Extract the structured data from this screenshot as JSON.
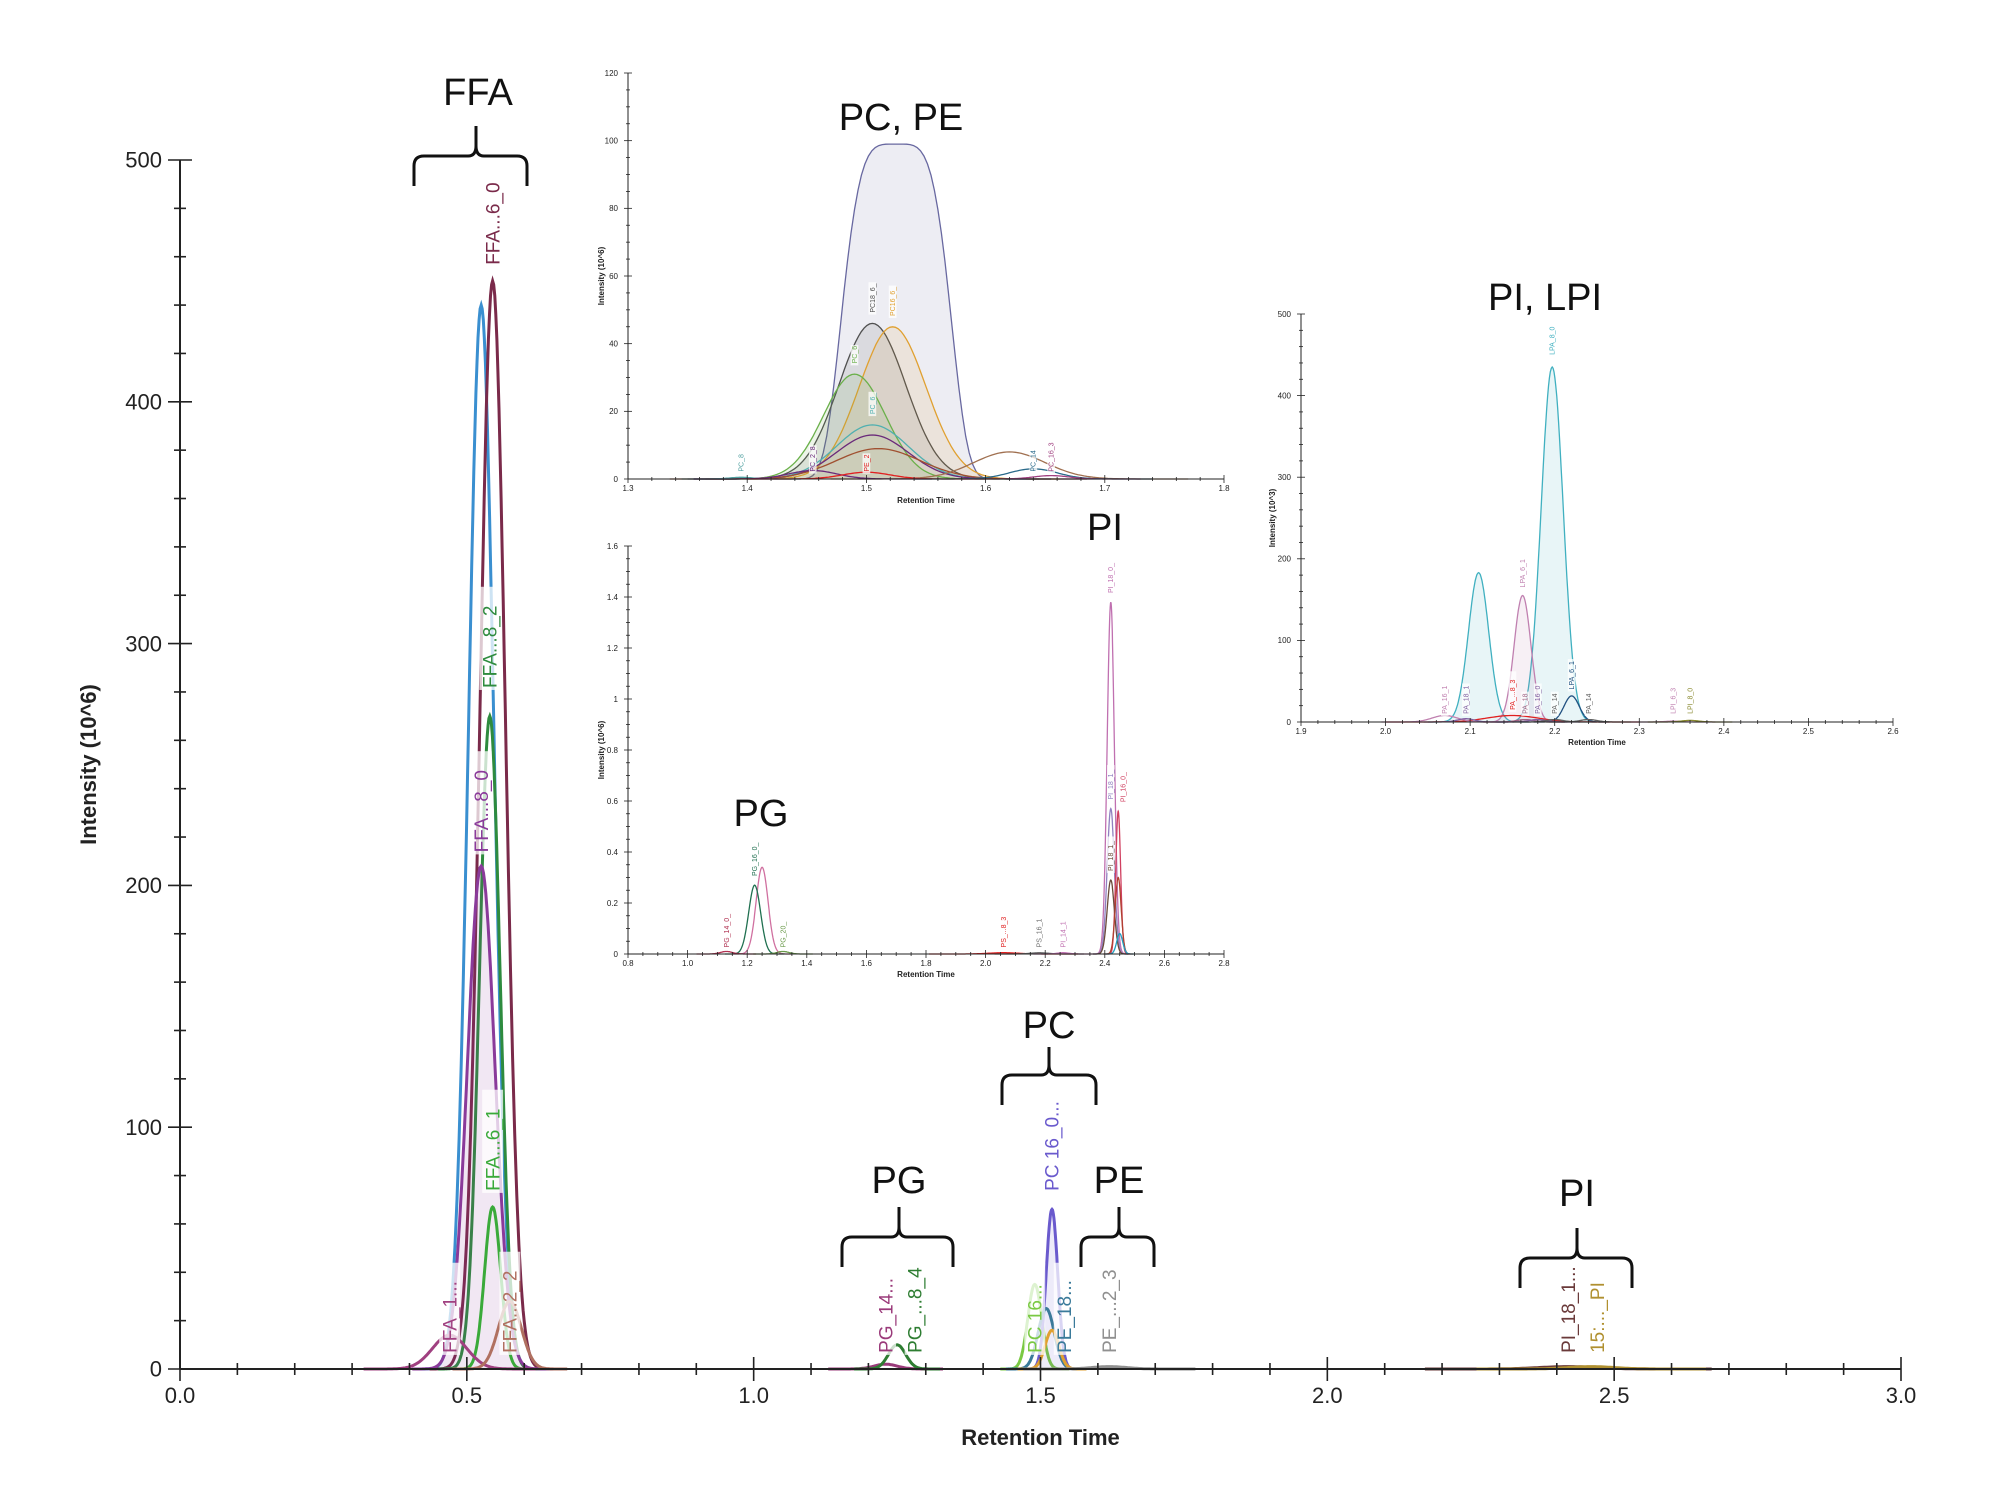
{
  "annotations": [
    "FFA",
    "PC, PE",
    "PI",
    "PG",
    "PI, LPI",
    "PC",
    "PG",
    "PE",
    "PI"
  ],
  "chart_data": [
    {
      "id": "main",
      "type": "line",
      "xlabel": "Retention Time",
      "ylabel": "Intensity (10^6)",
      "xlim": [
        0.0,
        3.0
      ],
      "ylim": [
        0,
        500
      ],
      "x_ticks": [
        "0.0",
        "0.5",
        "1.0",
        "1.5",
        "2.0",
        "2.5",
        "3.0"
      ],
      "y_ticks": [
        "0",
        "100",
        "200",
        "300",
        "400",
        "500"
      ],
      "grid": false,
      "peaks": [
        {
          "label": "",
          "rt": 0.525,
          "height": 440,
          "sigma": 0.022,
          "color": "#3a8fd0",
          "fill": false
        },
        {
          "label": "FFA...6_0",
          "rt": 0.545,
          "height": 450,
          "sigma": 0.022,
          "color": "#7a2a4a",
          "label_y": 455,
          "fill": false
        },
        {
          "label": "FFA...8_2",
          "rt": 0.54,
          "height": 270,
          "sigma": 0.018,
          "color": "#2e8b3e",
          "label_y": 280,
          "fill": false
        },
        {
          "label": "FFA...8_0",
          "rt": 0.525,
          "height": 208,
          "sigma": 0.024,
          "color": "#8a3a9a",
          "label_y": 212,
          "fill": true
        },
        {
          "label": "FFA...6_1",
          "rt": 0.545,
          "height": 67,
          "sigma": 0.014,
          "color": "#3aaa3a",
          "label_y": 72,
          "fill": false
        },
        {
          "label": "FFA_1...",
          "rt": 0.47,
          "height": 14,
          "sigma": 0.03,
          "color": "#a04080",
          "label_y": 5,
          "fill": false
        },
        {
          "label": "FFA...2_2",
          "rt": 0.575,
          "height": 28,
          "sigma": 0.02,
          "color": "#b07060",
          "label_y": 5,
          "fill": false
        },
        {
          "label": "PG_14...",
          "rt": 1.23,
          "height": 2,
          "sigma": 0.02,
          "color": "#9a3a7a",
          "label_y": 5,
          "fill": false
        },
        {
          "label": "PG_...8_4",
          "rt": 1.25,
          "height": 10,
          "sigma": 0.015,
          "color": "#2e7d32",
          "label_y": 5,
          "fill": false
        },
        {
          "label": "PC 16...",
          "rt": 1.49,
          "height": 35,
          "sigma": 0.012,
          "color": "#7ac943",
          "label_y": 5,
          "fill": false
        },
        {
          "label": "PC 16_0...",
          "rt": 1.52,
          "height": 66,
          "sigma": 0.01,
          "color": "#6a5acd",
          "label_y": 72,
          "fill": true
        },
        {
          "label": "PE_18...",
          "rt": 1.51,
          "height": 25,
          "sigma": 0.014,
          "color": "#3a7a9a",
          "label_y": 5,
          "fill": false
        },
        {
          "label": "",
          "rt": 1.52,
          "height": 16,
          "sigma": 0.012,
          "color": "#e0a030",
          "fill": false
        },
        {
          "label": "PE_...2_3",
          "rt": 1.62,
          "height": 1,
          "sigma": 0.03,
          "color": "#909090",
          "label_y": 5,
          "fill": false
        },
        {
          "label": "PI_18_1...",
          "rt": 2.42,
          "height": 1,
          "sigma": 0.05,
          "color": "#6a3a3a",
          "label_y": 5,
          "fill": false
        },
        {
          "label": "15:..._PI",
          "rt": 2.46,
          "height": 1,
          "sigma": 0.04,
          "color": "#b09030",
          "label_y": 5,
          "fill": false
        }
      ]
    },
    {
      "id": "inset-pc-pe",
      "type": "line",
      "xlabel": "Retention Time",
      "ylabel": "Intensity (10^6)",
      "xlim": [
        1.3,
        1.8
      ],
      "ylim": [
        0,
        120
      ],
      "x_ticks": [
        "1.3",
        "1.4",
        "1.5",
        "1.6",
        "1.7",
        "1.8"
      ],
      "y_ticks": [
        "0",
        "20",
        "40",
        "60",
        "80",
        "100",
        "120"
      ],
      "grid": false,
      "peaks": [
        {
          "label": "",
          "rt": 1.525,
          "height": 99,
          "sigma": 0.035,
          "flat": true,
          "color": "#6868a0",
          "fill": true
        },
        {
          "label": "PC18_6_",
          "rt": 1.505,
          "height": 46,
          "sigma": 0.028,
          "color": "#505050",
          "label_y": 48,
          "fill": true
        },
        {
          "label": "PC16_6_",
          "rt": 1.522,
          "height": 45,
          "sigma": 0.028,
          "color": "#e0a030",
          "label_y": 47,
          "fill": true
        },
        {
          "label": "PC_6",
          "rt": 1.49,
          "height": 31,
          "sigma": 0.026,
          "color": "#6ab04a",
          "label_y": 33,
          "fill": true
        },
        {
          "label": "PC_6_",
          "rt": 1.505,
          "height": 16,
          "sigma": 0.03,
          "color": "#50b0b0",
          "label_y": 18,
          "fill": false
        },
        {
          "label": "",
          "rt": 1.505,
          "height": 13,
          "sigma": 0.03,
          "color": "#6a2a7a",
          "fill": false
        },
        {
          "label": "",
          "rt": 1.51,
          "height": 9,
          "sigma": 0.035,
          "color": "#a05030",
          "fill": false
        },
        {
          "label": "",
          "rt": 1.62,
          "height": 8,
          "sigma": 0.03,
          "color": "#a07050",
          "fill": false
        },
        {
          "label": "PC_8",
          "rt": 1.395,
          "height": 0.5,
          "sigma": 0.01,
          "color": "#50a0a0",
          "label_y": 1,
          "fill": false
        },
        {
          "label": "PC_2_8",
          "rt": 1.455,
          "height": 2.5,
          "sigma": 0.02,
          "color": "#6a2a7a",
          "label_y": 1,
          "fill": false
        },
        {
          "label": "PE_2",
          "rt": 1.5,
          "height": 2,
          "sigma": 0.02,
          "color": "#e02020",
          "label_y": 1,
          "fill": false
        },
        {
          "label": "PC_14",
          "rt": 1.64,
          "height": 3,
          "sigma": 0.02,
          "color": "#2a6a8a",
          "label_y": 1,
          "fill": false
        },
        {
          "label": "PC_16_3",
          "rt": 1.655,
          "height": 1,
          "sigma": 0.015,
          "color": "#a04080",
          "label_y": 1,
          "fill": false
        }
      ]
    },
    {
      "id": "inset-pg-pi",
      "type": "line",
      "xlabel": "Retention Time",
      "ylabel": "Intensity (10^6)",
      "xlim": [
        0.8,
        2.8
      ],
      "ylim": [
        0,
        1.6
      ],
      "x_ticks": [
        "0.8",
        "1.0",
        "1.2",
        "1.4",
        "1.6",
        "1.8",
        "2.0",
        "2.2",
        "2.4",
        "2.6",
        "2.8"
      ],
      "y_ticks": [
        "0",
        "0.2",
        "0.4",
        "0.6",
        "0.8",
        "1",
        "1.2",
        "1.4",
        "1.6"
      ],
      "grid": false,
      "peaks": [
        {
          "label": "",
          "rt": 1.25,
          "height": 0.34,
          "sigma": 0.02,
          "color": "#d070a0",
          "fill": false
        },
        {
          "label": "PG_16_0_",
          "rt": 1.225,
          "height": 0.27,
          "sigma": 0.02,
          "color": "#207050",
          "label_y": 0.29,
          "fill": false
        },
        {
          "label": "PG_14_0_",
          "rt": 1.13,
          "height": 0.01,
          "sigma": 0.02,
          "color": "#b03050",
          "label_y": 0.01,
          "fill": false
        },
        {
          "label": "PG_20_",
          "rt": 1.32,
          "height": 0.01,
          "sigma": 0.02,
          "color": "#6a9a4a",
          "label_y": 0.01,
          "fill": false
        },
        {
          "label": "PS_...8_3",
          "rt": 2.06,
          "height": 0.005,
          "sigma": 0.05,
          "color": "#e02020",
          "label_y": 0.01,
          "fill": false
        },
        {
          "label": "PS_16_1",
          "rt": 2.18,
          "height": 0.005,
          "sigma": 0.03,
          "color": "#707070",
          "label_y": 0.01,
          "fill": false
        },
        {
          "label": "PI_14_1",
          "rt": 2.26,
          "height": 0.005,
          "sigma": 0.02,
          "color": "#c070b0",
          "label_y": 0.01,
          "fill": false
        },
        {
          "label": "PI_18_0_",
          "rt": 2.42,
          "height": 1.38,
          "sigma": 0.012,
          "color": "#c070b0",
          "label_y": 1.4,
          "fill": false
        },
        {
          "label": "PI_18_1_",
          "rt": 2.42,
          "height": 0.57,
          "sigma": 0.012,
          "color": "#9080c0",
          "label_y": 0.59,
          "fill": false
        },
        {
          "label": "PI_16_0_",
          "rt": 2.445,
          "height": 0.56,
          "sigma": 0.008,
          "color": "#d04060",
          "label_y": 0.58,
          "fill": false
        },
        {
          "label": "PI_18_1_",
          "rt": 2.42,
          "height": 0.29,
          "sigma": 0.012,
          "color": "#6a4a3a",
          "label_y": 0.31,
          "fill": false
        },
        {
          "label": "",
          "rt": 2.445,
          "height": 0.3,
          "sigma": 0.01,
          "color": "#b04030",
          "fill": false
        },
        {
          "label": "",
          "rt": 2.45,
          "height": 0.08,
          "sigma": 0.01,
          "color": "#20a0c0",
          "fill": false
        }
      ]
    },
    {
      "id": "inset-pi-lpi",
      "type": "line",
      "xlabel": "Retention Time",
      "ylabel": "Intensity (10^3)",
      "xlim": [
        1.9,
        2.6
      ],
      "ylim": [
        0,
        500
      ],
      "x_ticks": [
        "1.9",
        "2.0",
        "2.1",
        "2.2",
        "2.3",
        "2.4",
        "2.5",
        "2.6"
      ],
      "y_ticks": [
        "0",
        "100",
        "200",
        "300",
        "400",
        "500"
      ],
      "grid": false,
      "peaks": [
        {
          "label": "",
          "rt": 2.11,
          "height": 183,
          "sigma": 0.012,
          "color": "#40b0c0",
          "fill": true
        },
        {
          "label": "LPA_8_0",
          "rt": 2.197,
          "height": 435,
          "sigma": 0.013,
          "color": "#40b0c0",
          "label_y": 445,
          "fill": true
        },
        {
          "label": "LPA_6_1",
          "rt": 2.162,
          "height": 155,
          "sigma": 0.01,
          "color": "#c080b0",
          "label_y": 160,
          "fill": true
        },
        {
          "label": "LPA_6_1",
          "rt": 2.22,
          "height": 32,
          "sigma": 0.009,
          "color": "#205080",
          "label_y": 35,
          "fill": false
        },
        {
          "label": "PA_...8_3",
          "rt": 2.15,
          "height": 8,
          "sigma": 0.03,
          "color": "#e02020",
          "label_y": 10,
          "fill": false
        },
        {
          "label": "PA_16_1",
          "rt": 2.07,
          "height": 8,
          "sigma": 0.015,
          "color": "#c080b0",
          "label_y": 5,
          "fill": false
        },
        {
          "label": "PA_18_1",
          "rt": 2.095,
          "height": 4,
          "sigma": 0.01,
          "color": "#8060a0",
          "label_y": 5,
          "fill": false
        },
        {
          "label": "PA_18",
          "rt": 2.165,
          "height": 3,
          "sigma": 0.01,
          "color": "#a06080",
          "label_y": 5,
          "fill": false
        },
        {
          "label": "PA_16_0",
          "rt": 2.18,
          "height": 3,
          "sigma": 0.01,
          "color": "#8060a0",
          "label_y": 5,
          "fill": false
        },
        {
          "label": "PA_14",
          "rt": 2.2,
          "height": 3,
          "sigma": 0.01,
          "color": "#606060",
          "label_y": 5,
          "fill": false
        },
        {
          "label": "PA_14",
          "rt": 2.24,
          "height": 3,
          "sigma": 0.01,
          "color": "#606060",
          "label_y": 5,
          "fill": false
        },
        {
          "label": "LPI_6_3",
          "rt": 2.34,
          "height": 1,
          "sigma": 0.01,
          "color": "#c080b0",
          "label_y": 5,
          "fill": false
        },
        {
          "label": "LPI_8_0",
          "rt": 2.36,
          "height": 2,
          "sigma": 0.01,
          "color": "#8a8a30",
          "label_y": 5,
          "fill": false
        }
      ]
    }
  ]
}
